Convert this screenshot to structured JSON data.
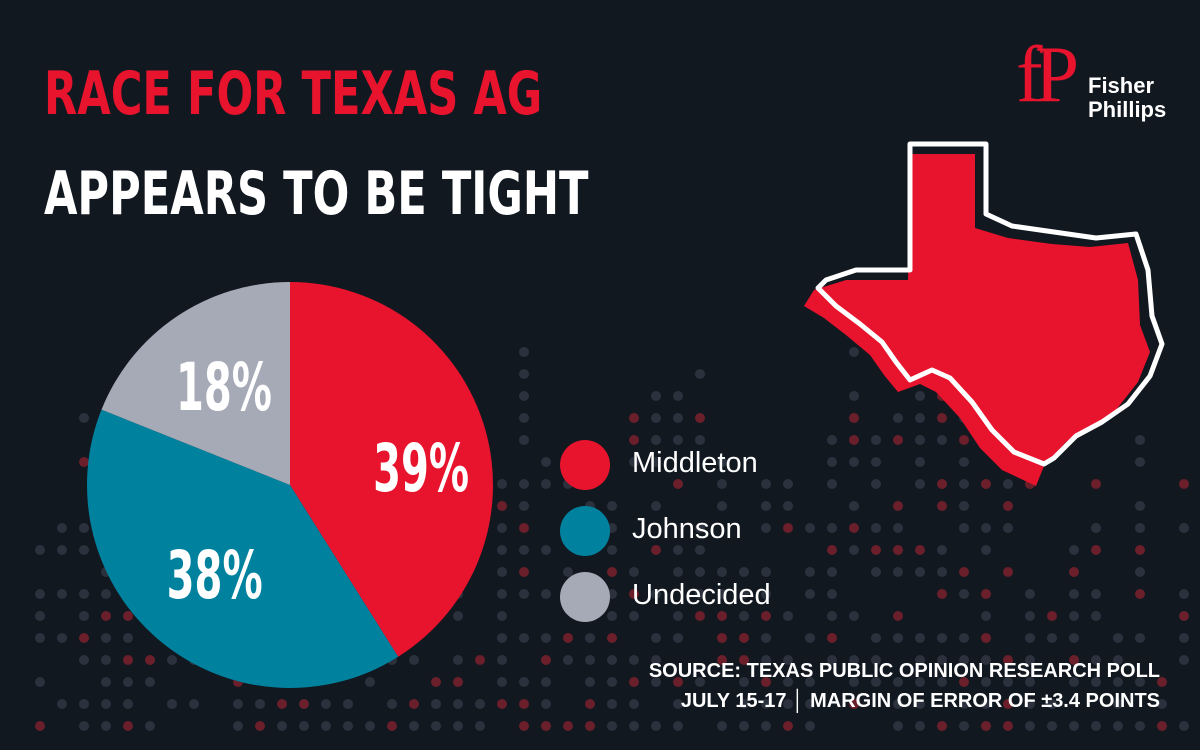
{
  "title": {
    "line1": "RACE FOR TEXAS AG",
    "line2": "APPEARS TO BE TIGHT"
  },
  "logo": {
    "mark": "fP",
    "word1": "Fisher",
    "word2": "Phillips"
  },
  "colors": {
    "background": "#121820",
    "middleton": "#e8132d",
    "johnson": "#00829f",
    "undecided": "#a6aab7",
    "accent_red": "#e8132d"
  },
  "chart_data": {
    "type": "pie",
    "categories": [
      "Middleton",
      "Johnson",
      "Undecided"
    ],
    "values": [
      39,
      38,
      18
    ],
    "value_labels": [
      "39%",
      "38%",
      "18%"
    ],
    "legend_position": "right",
    "legend": [
      "Middleton",
      "Johnson",
      "Undecided"
    ]
  },
  "source": {
    "line1": "SOURCE: TEXAS PUBLIC OPINION RESEARCH POLL",
    "line2": "JULY 15-17  │  MARGIN OF ERROR OF ±3.4 POINTS"
  },
  "map_icon": "texas-state-map-icon"
}
